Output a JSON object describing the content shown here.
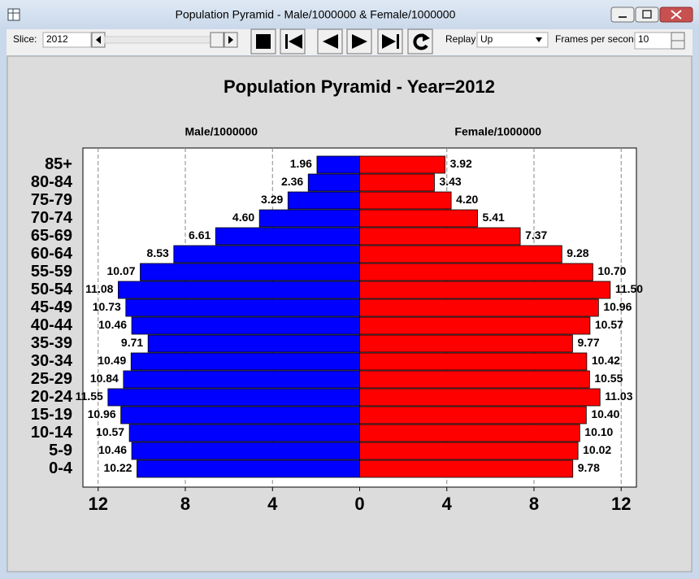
{
  "window": {
    "title": "Population Pyramid - Male/1000000 & Female/1000000"
  },
  "toolbar": {
    "slice_label": "Slice:",
    "slice_value": "2012",
    "replay_label": "Replay:",
    "replay_value": "Up",
    "fps_label": "Frames per second:",
    "fps_value": "10"
  },
  "chart_data": {
    "type": "pyramid",
    "title": "Population Pyramid - Year=2012",
    "categories": [
      "85+",
      "80-84",
      "75-79",
      "70-74",
      "65-69",
      "60-64",
      "55-59",
      "50-54",
      "45-49",
      "40-44",
      "35-39",
      "30-34",
      "25-29",
      "20-24",
      "15-19",
      "10-14",
      "5-9",
      "0-4"
    ],
    "series": [
      {
        "name": "Male/1000000",
        "color": "#0000ff",
        "side": "left",
        "values": [
          1.96,
          2.36,
          3.29,
          4.6,
          6.61,
          8.53,
          10.07,
          11.08,
          10.73,
          10.46,
          9.71,
          10.49,
          10.84,
          11.55,
          10.96,
          10.57,
          10.46,
          10.22
        ],
        "value_labels": [
          "1.96",
          "2.36",
          "3.29",
          "4.60",
          "6.61",
          "8.53",
          "10.07",
          "11.08",
          "10.73",
          "10.46",
          "9.71",
          "10.49",
          "10.84",
          "11.55",
          "10.96",
          "10.57",
          "10.46",
          "10.22"
        ]
      },
      {
        "name": "Female/1000000",
        "color": "#ff0000",
        "side": "right",
        "values": [
          3.92,
          3.43,
          4.2,
          5.41,
          7.37,
          9.28,
          10.7,
          11.5,
          10.96,
          10.57,
          9.77,
          10.42,
          10.55,
          11.03,
          10.4,
          10.1,
          10.02,
          9.78
        ],
        "value_labels": [
          "3.92",
          "3.43",
          "4.20",
          "5.41",
          "7.37",
          "9.28",
          "10.70",
          "11.50",
          "10.96",
          "10.57",
          "9.77",
          "10.42",
          "10.55",
          "11.03",
          "10.40",
          "10.10",
          "10.02",
          "9.78"
        ]
      }
    ],
    "xlim": [
      -12.7,
      12.7
    ],
    "xticks": [
      {
        "value": -12,
        "label": "12"
      },
      {
        "value": -8,
        "label": "8"
      },
      {
        "value": -4,
        "label": "4"
      },
      0,
      4,
      8,
      12
    ],
    "grid": true
  }
}
